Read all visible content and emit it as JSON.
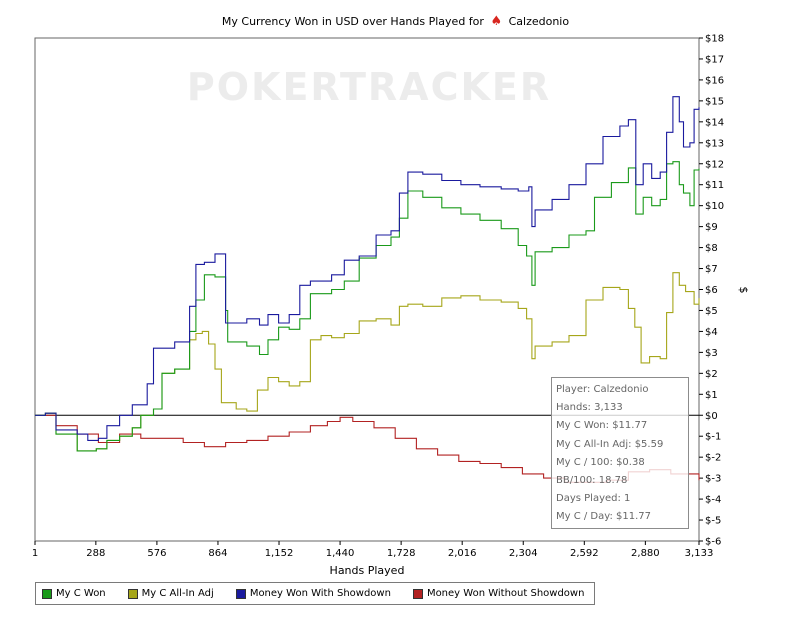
{
  "chart_data": {
    "type": "line",
    "title": "My Currency Won in USD over Hands Played for",
    "player": "Calzedonio",
    "xlabel": "Hands Played",
    "ylabel": "$",
    "xlim": [
      1,
      3133
    ],
    "ylim": [
      -6,
      18
    ],
    "x_ticks": [
      1,
      288,
      576,
      864,
      1152,
      1440,
      1728,
      2016,
      2304,
      2592,
      2880,
      3133
    ],
    "x_tick_labels": [
      "1",
      "288",
      "576",
      "864",
      "1,152",
      "1,440",
      "1,728",
      "2,016",
      "2,304",
      "2,592",
      "2,880",
      "3,133"
    ],
    "y_ticks": [
      -6,
      -5,
      -4,
      -3,
      -2,
      -1,
      0,
      1,
      2,
      3,
      4,
      5,
      6,
      7,
      8,
      9,
      10,
      11,
      12,
      13,
      14,
      15,
      16,
      17,
      18
    ],
    "y_tick_labels": [
      "$-6",
      "$-5",
      "$-4",
      "$-3",
      "$-2",
      "$-1",
      "$0",
      "$1",
      "$2",
      "$3",
      "$4",
      "$5",
      "$6",
      "$7",
      "$8",
      "$9",
      "$10",
      "$11",
      "$12",
      "$13",
      "$14",
      "$15",
      "$16",
      "$17",
      "$18"
    ],
    "grid": false,
    "legend_position": "bottom-left",
    "series": [
      {
        "name": "My C Won",
        "color": "#1a9a1a",
        "points": [
          [
            1,
            0
          ],
          [
            50,
            0.1
          ],
          [
            100,
            -0.9
          ],
          [
            200,
            -1.7
          ],
          [
            290,
            -1.6
          ],
          [
            340,
            -1.2
          ],
          [
            400,
            -1.0
          ],
          [
            460,
            -0.6
          ],
          [
            500,
            0
          ],
          [
            560,
            0.3
          ],
          [
            600,
            2.0
          ],
          [
            660,
            2.2
          ],
          [
            730,
            4.0
          ],
          [
            760,
            5.5
          ],
          [
            800,
            6.7
          ],
          [
            850,
            6.6
          ],
          [
            900,
            5.0
          ],
          [
            910,
            3.5
          ],
          [
            1000,
            3.3
          ],
          [
            1060,
            2.9
          ],
          [
            1100,
            3.6
          ],
          [
            1150,
            4.2
          ],
          [
            1200,
            4.1
          ],
          [
            1250,
            4.6
          ],
          [
            1300,
            5.8
          ],
          [
            1400,
            6.0
          ],
          [
            1460,
            6.4
          ],
          [
            1530,
            7.5
          ],
          [
            1610,
            8.1
          ],
          [
            1680,
            8.5
          ],
          [
            1720,
            9.4
          ],
          [
            1760,
            10.7
          ],
          [
            1830,
            10.4
          ],
          [
            1920,
            9.9
          ],
          [
            2010,
            9.6
          ],
          [
            2100,
            9.3
          ],
          [
            2200,
            8.9
          ],
          [
            2280,
            8.1
          ],
          [
            2320,
            7.6
          ],
          [
            2345,
            6.2
          ],
          [
            2360,
            7.8
          ],
          [
            2440,
            8.0
          ],
          [
            2520,
            8.6
          ],
          [
            2600,
            8.8
          ],
          [
            2640,
            10.4
          ],
          [
            2720,
            11.1
          ],
          [
            2800,
            11.8
          ],
          [
            2835,
            9.6
          ],
          [
            2870,
            10.4
          ],
          [
            2910,
            10.0
          ],
          [
            2950,
            10.3
          ],
          [
            2980,
            12.0
          ],
          [
            3010,
            12.1
          ],
          [
            3040,
            11.0
          ],
          [
            3060,
            10.6
          ],
          [
            3090,
            10.0
          ],
          [
            3110,
            11.7
          ],
          [
            3133,
            11.77
          ]
        ]
      },
      {
        "name": "My C All-In Adj",
        "color": "#a6a61a",
        "points": [
          [
            1,
            0
          ],
          [
            50,
            0.1
          ],
          [
            100,
            -0.9
          ],
          [
            200,
            -1.7
          ],
          [
            290,
            -1.6
          ],
          [
            340,
            -1.2
          ],
          [
            400,
            -1.0
          ],
          [
            460,
            -0.6
          ],
          [
            500,
            0
          ],
          [
            560,
            0.3
          ],
          [
            600,
            2.0
          ],
          [
            660,
            2.2
          ],
          [
            730,
            3.6
          ],
          [
            760,
            3.9
          ],
          [
            790,
            4.0
          ],
          [
            820,
            3.4
          ],
          [
            850,
            2.2
          ],
          [
            880,
            0.6
          ],
          [
            950,
            0.3
          ],
          [
            1000,
            0.2
          ],
          [
            1050,
            1.2
          ],
          [
            1100,
            1.8
          ],
          [
            1150,
            1.6
          ],
          [
            1200,
            1.4
          ],
          [
            1250,
            1.6
          ],
          [
            1300,
            3.6
          ],
          [
            1350,
            3.8
          ],
          [
            1400,
            3.7
          ],
          [
            1460,
            3.9
          ],
          [
            1530,
            4.5
          ],
          [
            1610,
            4.6
          ],
          [
            1680,
            4.3
          ],
          [
            1720,
            5.2
          ],
          [
            1760,
            5.3
          ],
          [
            1830,
            5.2
          ],
          [
            1920,
            5.6
          ],
          [
            2010,
            5.7
          ],
          [
            2100,
            5.5
          ],
          [
            2200,
            5.4
          ],
          [
            2280,
            5.1
          ],
          [
            2320,
            4.6
          ],
          [
            2345,
            2.7
          ],
          [
            2360,
            3.3
          ],
          [
            2440,
            3.5
          ],
          [
            2520,
            3.8
          ],
          [
            2600,
            5.5
          ],
          [
            2680,
            6.1
          ],
          [
            2760,
            6.0
          ],
          [
            2800,
            5.1
          ],
          [
            2830,
            4.2
          ],
          [
            2860,
            2.5
          ],
          [
            2900,
            2.8
          ],
          [
            2950,
            2.7
          ],
          [
            2980,
            4.9
          ],
          [
            3010,
            6.8
          ],
          [
            3040,
            6.2
          ],
          [
            3070,
            5.9
          ],
          [
            3110,
            5.3
          ],
          [
            3133,
            5.59
          ]
        ]
      },
      {
        "name": "Money Won With Showdown",
        "color": "#1a1a9e",
        "points": [
          [
            1,
            0
          ],
          [
            50,
            0.1
          ],
          [
            100,
            -0.7
          ],
          [
            200,
            -0.9
          ],
          [
            250,
            -1.2
          ],
          [
            300,
            -1.1
          ],
          [
            340,
            -0.5
          ],
          [
            400,
            0
          ],
          [
            460,
            0.5
          ],
          [
            530,
            1.5
          ],
          [
            560,
            3.2
          ],
          [
            620,
            3.2
          ],
          [
            660,
            3.5
          ],
          [
            730,
            5.2
          ],
          [
            760,
            7.2
          ],
          [
            800,
            7.3
          ],
          [
            850,
            7.7
          ],
          [
            900,
            4.4
          ],
          [
            950,
            4.4
          ],
          [
            1000,
            4.6
          ],
          [
            1060,
            4.3
          ],
          [
            1100,
            4.8
          ],
          [
            1150,
            4.4
          ],
          [
            1200,
            4.8
          ],
          [
            1250,
            6.2
          ],
          [
            1300,
            6.4
          ],
          [
            1400,
            6.7
          ],
          [
            1460,
            7.4
          ],
          [
            1530,
            7.6
          ],
          [
            1610,
            8.6
          ],
          [
            1680,
            8.8
          ],
          [
            1720,
            10.6
          ],
          [
            1760,
            11.6
          ],
          [
            1830,
            11.5
          ],
          [
            1920,
            11.2
          ],
          [
            2010,
            11.0
          ],
          [
            2100,
            10.9
          ],
          [
            2200,
            10.8
          ],
          [
            2280,
            10.7
          ],
          [
            2330,
            10.9
          ],
          [
            2345,
            9.0
          ],
          [
            2360,
            9.8
          ],
          [
            2440,
            10.3
          ],
          [
            2520,
            11.0
          ],
          [
            2600,
            12.0
          ],
          [
            2680,
            13.3
          ],
          [
            2760,
            13.8
          ],
          [
            2800,
            14.1
          ],
          [
            2835,
            11.0
          ],
          [
            2870,
            12.0
          ],
          [
            2910,
            11.3
          ],
          [
            2950,
            11.6
          ],
          [
            2980,
            13.5
          ],
          [
            3010,
            15.2
          ],
          [
            3040,
            14.0
          ],
          [
            3060,
            12.8
          ],
          [
            3090,
            13.0
          ],
          [
            3110,
            14.6
          ],
          [
            3133,
            14.7
          ]
        ]
      },
      {
        "name": "Money Won Without Showdown",
        "color": "#b22222",
        "points": [
          [
            1,
            0
          ],
          [
            100,
            -0.5
          ],
          [
            200,
            -0.9
          ],
          [
            300,
            -1.3
          ],
          [
            400,
            -0.9
          ],
          [
            500,
            -1.1
          ],
          [
            600,
            -1.1
          ],
          [
            700,
            -1.3
          ],
          [
            800,
            -1.5
          ],
          [
            900,
            -1.3
          ],
          [
            1000,
            -1.2
          ],
          [
            1100,
            -1.0
          ],
          [
            1200,
            -0.8
          ],
          [
            1300,
            -0.5
          ],
          [
            1380,
            -0.3
          ],
          [
            1440,
            -0.1
          ],
          [
            1500,
            -0.3
          ],
          [
            1600,
            -0.6
          ],
          [
            1700,
            -1.1
          ],
          [
            1800,
            -1.6
          ],
          [
            1900,
            -1.9
          ],
          [
            2000,
            -2.2
          ],
          [
            2100,
            -2.3
          ],
          [
            2200,
            -2.5
          ],
          [
            2300,
            -2.8
          ],
          [
            2400,
            -3.0
          ],
          [
            2500,
            -3.2
          ],
          [
            2600,
            -3.2
          ],
          [
            2700,
            -3.1
          ],
          [
            2800,
            -2.7
          ],
          [
            2900,
            -2.6
          ],
          [
            3000,
            -2.8
          ],
          [
            3080,
            -2.8
          ],
          [
            3133,
            -3.1
          ]
        ]
      }
    ]
  },
  "watermark": "POKERTRACKER",
  "tooltip": {
    "lines": [
      "Player: Calzedonio",
      "Hands: 3,133",
      "My C Won: $11.77",
      "My C All-In Adj: $5.59",
      "My C / 100: $0.38",
      "BB/100: 18.78",
      "Days Played: 1",
      "My C / Day: $11.77"
    ]
  }
}
